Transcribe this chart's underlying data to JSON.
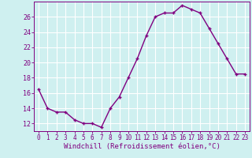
{
  "hours": [
    0,
    1,
    2,
    3,
    4,
    5,
    6,
    7,
    8,
    9,
    10,
    11,
    12,
    13,
    14,
    15,
    16,
    17,
    18,
    19,
    20,
    21,
    22,
    23
  ],
  "values": [
    16.5,
    14.0,
    13.5,
    13.5,
    12.5,
    12.0,
    12.0,
    11.5,
    14.0,
    15.5,
    18.0,
    20.5,
    23.5,
    26.0,
    26.5,
    26.5,
    27.5,
    27.0,
    26.5,
    24.5,
    22.5,
    20.5,
    18.5,
    18.5
  ],
  "line_color": "#800080",
  "marker": "+",
  "bg_color": "#cff0f0",
  "grid_color": "#ffffff",
  "xlabel": "Windchill (Refroidissement éolien,°C)",
  "xlim_min": -0.5,
  "xlim_max": 23.5,
  "ylim_min": 11.0,
  "ylim_max": 28.0,
  "yticks": [
    12,
    14,
    16,
    18,
    20,
    22,
    24,
    26
  ],
  "xticks": [
    0,
    1,
    2,
    3,
    4,
    5,
    6,
    7,
    8,
    9,
    10,
    11,
    12,
    13,
    14,
    15,
    16,
    17,
    18,
    19,
    20,
    21,
    22,
    23
  ],
  "tick_color": "#800080",
  "label_color": "#800080",
  "linewidth": 1.0,
  "markersize": 3.5,
  "markeredgewidth": 1.0,
  "tick_fontsize": 5.5,
  "xlabel_fontsize": 6.5
}
